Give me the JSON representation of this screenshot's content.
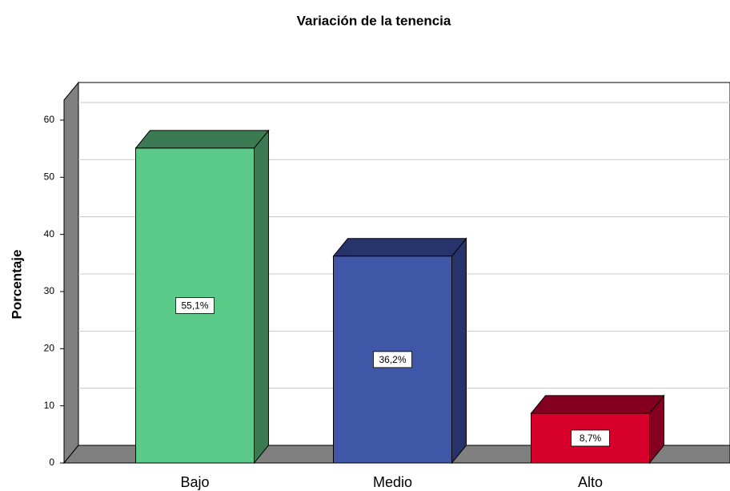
{
  "chart_data": {
    "type": "bar3d",
    "title": "Variación de la tenencia",
    "y_label": "Porcentaje",
    "categories": [
      "Bajo",
      "Medio",
      "Alto"
    ],
    "values": [
      55.1,
      36.2,
      8.7
    ],
    "value_labels": [
      "55,1%",
      "36,2%",
      "8,7%"
    ],
    "colors": [
      "#5ccb8a",
      "#3f57a6",
      "#d6002a"
    ],
    "side_colors": [
      "#3b7a52",
      "#27336b",
      "#850020"
    ],
    "ylim": [
      0,
      63.5
    ],
    "yticks": [
      0,
      10,
      20,
      30,
      40,
      50,
      60
    ],
    "grid": true
  }
}
